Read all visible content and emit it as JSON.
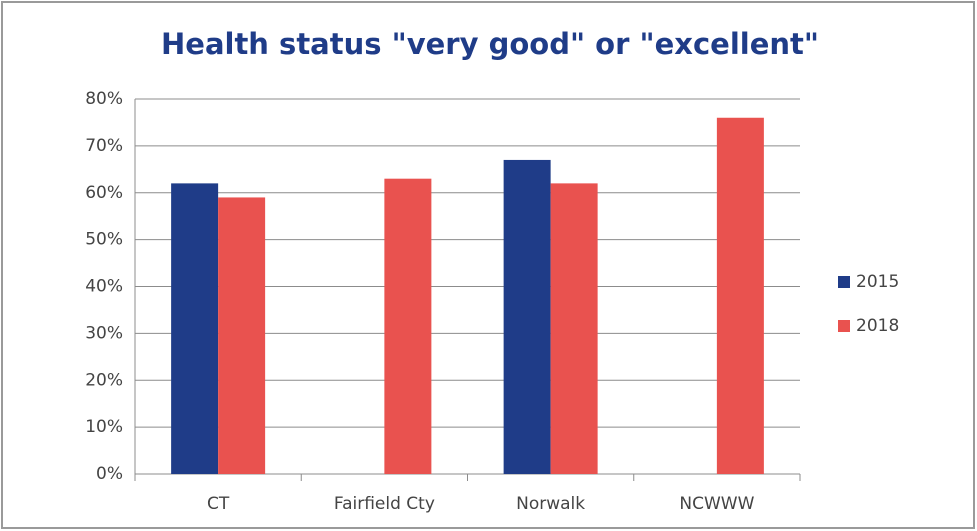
{
  "chart_data": {
    "type": "bar",
    "title": "Health status \"very good\" or \"excellent\"",
    "categories": [
      "CT",
      "Fairfield Cty",
      "Norwalk",
      "NCWWW"
    ],
    "series": [
      {
        "name": "2015",
        "color": "#1f3c88",
        "values": [
          62,
          null,
          67,
          null
        ]
      },
      {
        "name": "2018",
        "color": "#e9524f",
        "values": [
          59,
          63,
          62,
          76
        ]
      }
    ],
    "ylim": [
      0,
      80
    ],
    "yticks": [
      {
        "value": 0,
        "label": "0%"
      },
      {
        "value": 10,
        "label": "10%"
      },
      {
        "value": 20,
        "label": "20%"
      },
      {
        "value": 30,
        "label": "30%"
      },
      {
        "value": 40,
        "label": "40%"
      },
      {
        "value": 50,
        "label": "50%"
      },
      {
        "value": 60,
        "label": "60%"
      },
      {
        "value": 70,
        "label": "70%"
      },
      {
        "value": 80,
        "label": "80%"
      }
    ],
    "grid": true,
    "legend": "right"
  }
}
